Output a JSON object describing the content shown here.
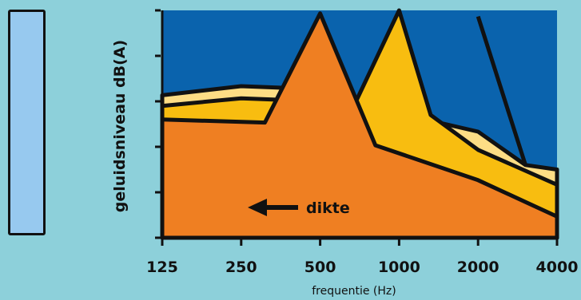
{
  "chart_data": {
    "type": "area",
    "x": [
      "125",
      "250",
      "500",
      "1000",
      "2000",
      "4000"
    ],
    "xlabel": "frequentie (Hz)",
    "ylabel": "geluidsniveau dB(A)",
    "y_ticks": 6,
    "grid": false,
    "series": [
      {
        "color": "#fddd85",
        "points": [
          [
            0,
            4.7
          ],
          [
            1,
            5.0
          ],
          [
            2,
            4.9
          ],
          [
            2.6,
            4.5
          ],
          [
            3,
            4.1
          ],
          [
            4,
            3.5
          ],
          [
            4.6,
            2.4
          ],
          [
            5,
            2.25
          ]
        ]
      },
      {
        "color": "#f8bd10",
        "points": [
          [
            0,
            4.35
          ],
          [
            1,
            4.6
          ],
          [
            2,
            4.5
          ],
          [
            2.4,
            4.2
          ],
          [
            3,
            7.5
          ],
          [
            3.4,
            4.05
          ],
          [
            4,
            2.9
          ],
          [
            5,
            1.75
          ]
        ]
      },
      {
        "color": "#ef7f22",
        "points": [
          [
            0,
            3.9
          ],
          [
            1.3,
            3.8
          ],
          [
            2,
            7.4
          ],
          [
            2.7,
            3.05
          ],
          [
            4,
            1.9
          ],
          [
            5,
            0.7
          ]
        ]
      },
      {
        "color": "#fddd85",
        "points": [
          [
            4,
            7.3
          ],
          [
            4.6,
            2.4
          ]
        ]
      }
    ],
    "annotations": [
      {
        "text": "dikte",
        "arrow": "left"
      }
    ],
    "plot_color": "#0a63ad",
    "legend_swatch_color": "#97c9ef"
  }
}
